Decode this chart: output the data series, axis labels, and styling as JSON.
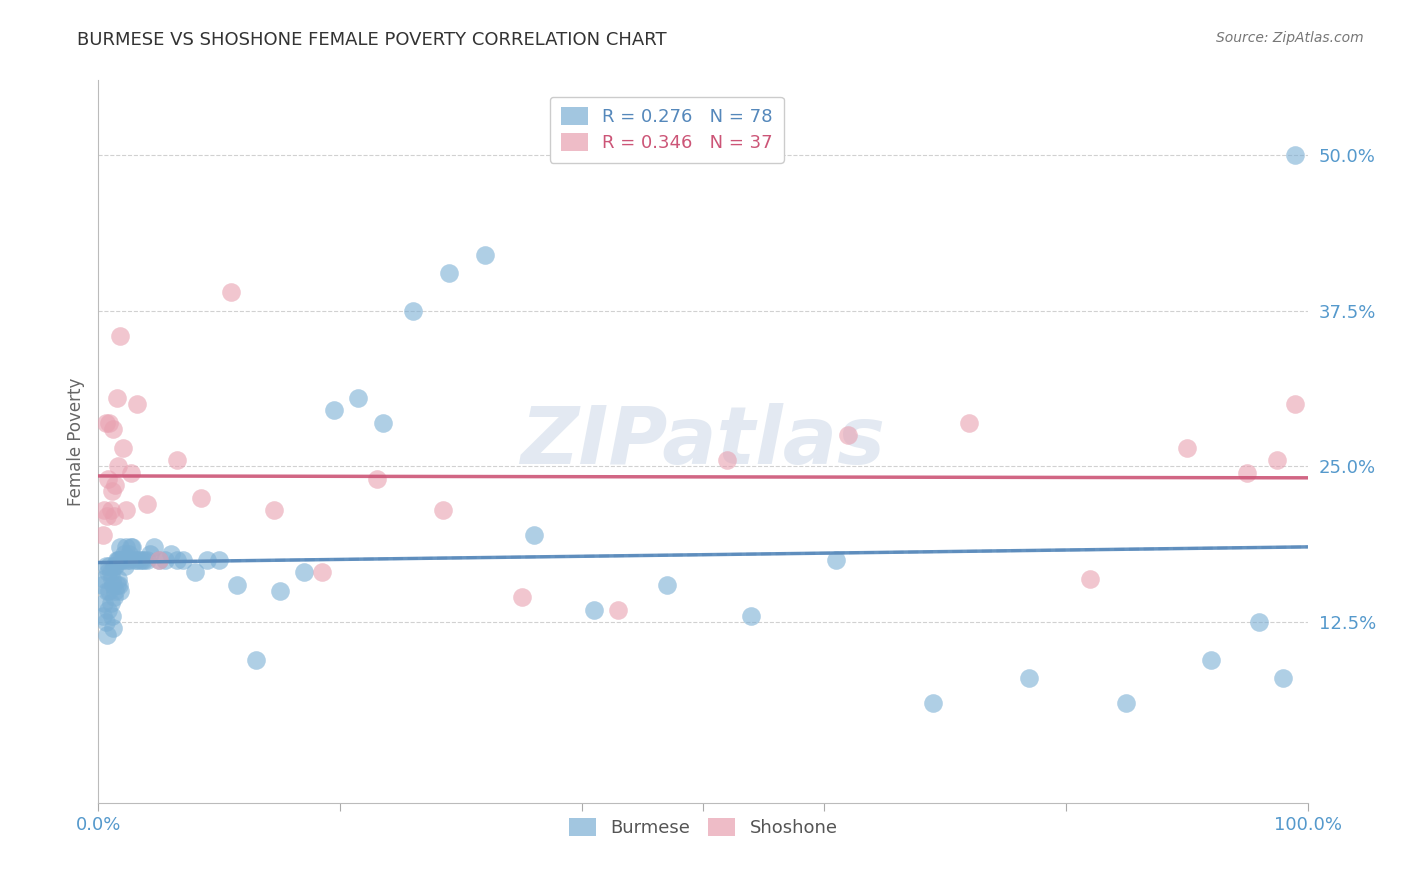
{
  "title": "BURMESE VS SHOSHONE FEMALE POVERTY CORRELATION CHART",
  "source": "Source: ZipAtlas.com",
  "ylabel": "Female Poverty",
  "ytick_labels": [
    "50.0%",
    "37.5%",
    "25.0%",
    "12.5%"
  ],
  "ytick_values": [
    0.5,
    0.375,
    0.25,
    0.125
  ],
  "xlim": [
    0.0,
    1.0
  ],
  "ylim": [
    -0.02,
    0.56
  ],
  "burmese_color": "#7bafd4",
  "shoshone_color": "#e8a0b0",
  "burmese_line_color": "#5588bb",
  "shoshone_line_color": "#cc5577",
  "background_color": "#ffffff",
  "watermark_color": "#ccd8e8",
  "axis_label_color": "#5599cc",
  "title_fontsize": 13,
  "source_fontsize": 10,
  "burmese_x": [
    0.003,
    0.004,
    0.005,
    0.005,
    0.006,
    0.006,
    0.007,
    0.007,
    0.008,
    0.008,
    0.009,
    0.009,
    0.01,
    0.01,
    0.011,
    0.011,
    0.012,
    0.012,
    0.013,
    0.013,
    0.014,
    0.014,
    0.015,
    0.015,
    0.016,
    0.016,
    0.017,
    0.017,
    0.018,
    0.018,
    0.019,
    0.02,
    0.021,
    0.022,
    0.023,
    0.024,
    0.025,
    0.026,
    0.027,
    0.028,
    0.03,
    0.032,
    0.034,
    0.036,
    0.038,
    0.04,
    0.043,
    0.046,
    0.05,
    0.055,
    0.06,
    0.065,
    0.07,
    0.08,
    0.09,
    0.1,
    0.115,
    0.13,
    0.15,
    0.17,
    0.195,
    0.215,
    0.235,
    0.26,
    0.29,
    0.32,
    0.36,
    0.41,
    0.47,
    0.54,
    0.61,
    0.69,
    0.77,
    0.85,
    0.92,
    0.96,
    0.98,
    0.99
  ],
  "burmese_y": [
    0.155,
    0.13,
    0.14,
    0.16,
    0.125,
    0.17,
    0.115,
    0.15,
    0.135,
    0.165,
    0.15,
    0.17,
    0.14,
    0.165,
    0.13,
    0.16,
    0.12,
    0.155,
    0.145,
    0.17,
    0.15,
    0.17,
    0.155,
    0.175,
    0.16,
    0.175,
    0.155,
    0.175,
    0.15,
    0.185,
    0.175,
    0.175,
    0.18,
    0.17,
    0.185,
    0.175,
    0.18,
    0.175,
    0.185,
    0.185,
    0.175,
    0.175,
    0.175,
    0.175,
    0.175,
    0.175,
    0.18,
    0.185,
    0.175,
    0.175,
    0.18,
    0.175,
    0.175,
    0.165,
    0.175,
    0.175,
    0.155,
    0.095,
    0.15,
    0.165,
    0.295,
    0.305,
    0.285,
    0.375,
    0.405,
    0.42,
    0.195,
    0.135,
    0.155,
    0.13,
    0.175,
    0.06,
    0.08,
    0.06,
    0.095,
    0.125,
    0.08,
    0.5
  ],
  "shoshone_x": [
    0.004,
    0.005,
    0.006,
    0.007,
    0.008,
    0.009,
    0.01,
    0.011,
    0.012,
    0.013,
    0.014,
    0.015,
    0.016,
    0.018,
    0.02,
    0.023,
    0.027,
    0.032,
    0.04,
    0.05,
    0.065,
    0.085,
    0.11,
    0.145,
    0.185,
    0.23,
    0.285,
    0.35,
    0.43,
    0.52,
    0.62,
    0.72,
    0.82,
    0.9,
    0.95,
    0.975,
    0.99
  ],
  "shoshone_y": [
    0.195,
    0.215,
    0.285,
    0.21,
    0.24,
    0.285,
    0.215,
    0.23,
    0.28,
    0.21,
    0.235,
    0.305,
    0.25,
    0.355,
    0.265,
    0.215,
    0.245,
    0.3,
    0.22,
    0.175,
    0.255,
    0.225,
    0.39,
    0.215,
    0.165,
    0.24,
    0.215,
    0.145,
    0.135,
    0.255,
    0.275,
    0.285,
    0.16,
    0.265,
    0.245,
    0.255,
    0.3
  ]
}
